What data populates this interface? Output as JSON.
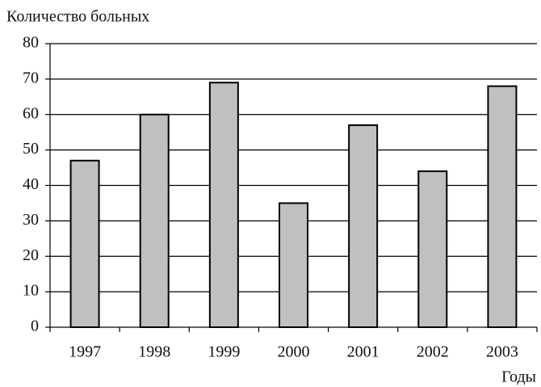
{
  "chart_data": {
    "type": "bar",
    "y_label": "Количество больных",
    "x_label": "Годы",
    "categories": [
      "1997",
      "1998",
      "1999",
      "2000",
      "2001",
      "2002",
      "2003"
    ],
    "values": [
      47,
      60,
      69,
      35,
      57,
      44,
      68
    ],
    "color": "#c0c0c0",
    "ylim": [
      0,
      80
    ],
    "yticks": [
      0,
      10,
      20,
      30,
      40,
      50,
      60,
      70,
      80
    ],
    "grid": true
  }
}
